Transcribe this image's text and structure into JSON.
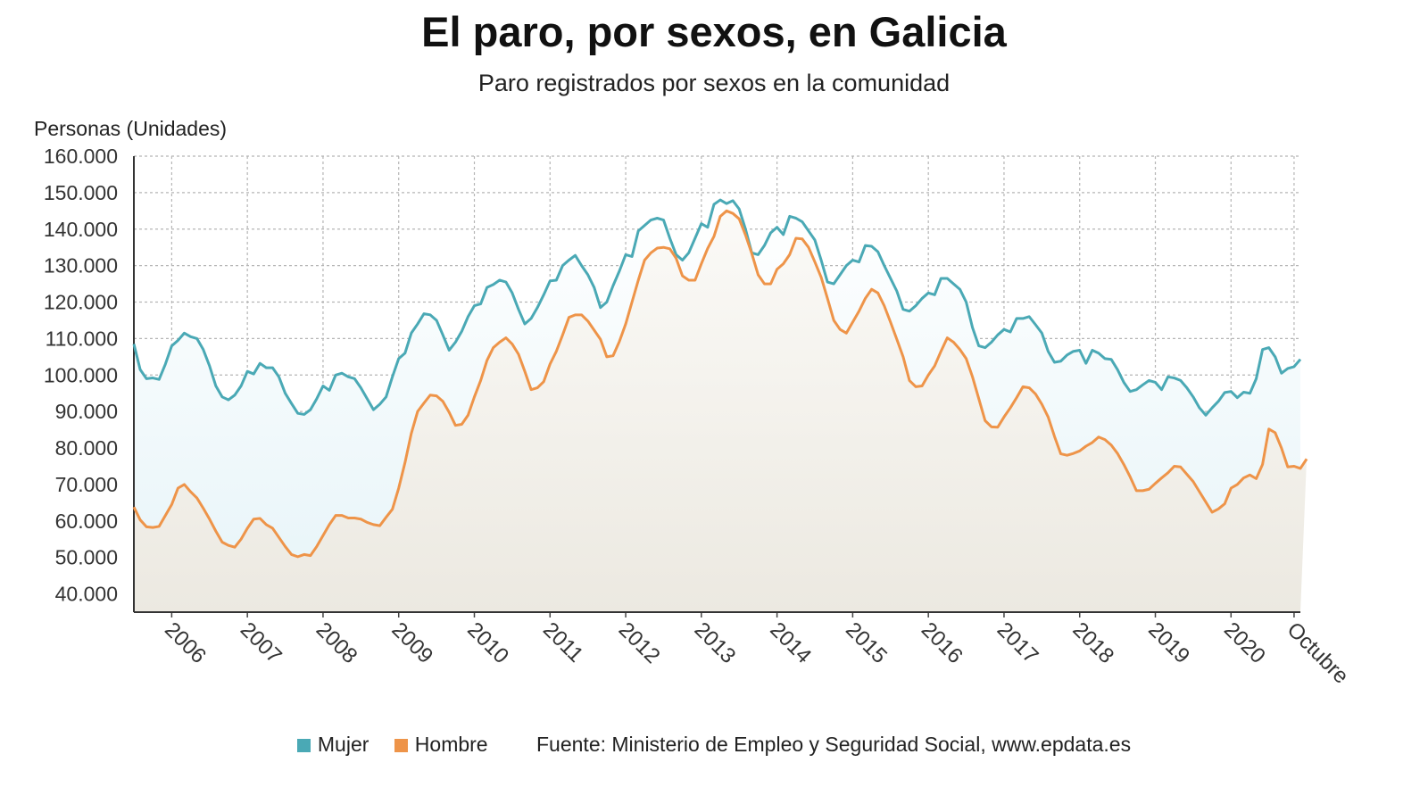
{
  "header": {
    "title": "El paro, por sexos, en Galicia",
    "subtitle": "Paro registrados por sexos en la comunidad"
  },
  "legend": {
    "source": "Fuente: Ministerio de Empleo y Seguridad Social, www.epdata.es"
  },
  "chart_data": {
    "type": "area",
    "title": "El paro, por sexos, en Galicia",
    "subtitle": "Paro registrados por sexos en la comunidad",
    "ylabel": "Personas (Unidades)",
    "xlabel": "",
    "ylim": [
      35000,
      160000
    ],
    "y_ticks": [
      160000,
      150000,
      140000,
      130000,
      120000,
      110000,
      100000,
      90000,
      80000,
      70000,
      60000,
      50000,
      40000
    ],
    "y_tick_labels": [
      "160.000",
      "150.000",
      "140.000",
      "130.000",
      "120.000",
      "110.000",
      "100.000",
      "90.000",
      "80.000",
      "70.000",
      "60.000",
      "50.000",
      "40.000"
    ],
    "x_range": [
      "2005-07",
      "2020-10"
    ],
    "x_ticks": [
      {
        "label": "2006",
        "month_index": 6
      },
      {
        "label": "2007",
        "month_index": 18
      },
      {
        "label": "2008",
        "month_index": 30
      },
      {
        "label": "2009",
        "month_index": 42
      },
      {
        "label": "2010",
        "month_index": 54
      },
      {
        "label": "2011",
        "month_index": 66
      },
      {
        "label": "2012",
        "month_index": 78
      },
      {
        "label": "2013",
        "month_index": 90
      },
      {
        "label": "2014",
        "month_index": 102
      },
      {
        "label": "2015",
        "month_index": 114
      },
      {
        "label": "2016",
        "month_index": 126
      },
      {
        "label": "2017",
        "month_index": 138
      },
      {
        "label": "2018",
        "month_index": 150
      },
      {
        "label": "2019",
        "month_index": 162
      },
      {
        "label": "2020",
        "month_index": 174
      },
      {
        "label": "Octubre",
        "month_index": 184
      }
    ],
    "grid": true,
    "legend_position": "bottom",
    "series": [
      {
        "name": "Mujer",
        "color": "#4aa9b5",
        "values": [
          108500,
          101500,
          99000,
          99200,
          98800,
          103000,
          108000,
          109500,
          111500,
          110500,
          110000,
          107000,
          102500,
          97000,
          94000,
          93200,
          94500,
          97000,
          101000,
          100300,
          103200,
          102000,
          102000,
          99500,
          95000,
          92200,
          89500,
          89200,
          90500,
          93500,
          97000,
          95800,
          100000,
          100500,
          99500,
          99000,
          96500,
          93500,
          90500,
          92000,
          94000,
          99500,
          104500,
          106000,
          111500,
          114000,
          116800,
          116500,
          115000,
          111000,
          106800,
          109000,
          112000,
          116000,
          119000,
          119500,
          124000,
          124800,
          126000,
          125500,
          122500,
          118000,
          114000,
          115500,
          118500,
          122000,
          125800,
          126000,
          130000,
          131500,
          132800,
          130000,
          127500,
          124000,
          118500,
          120000,
          124500,
          128500,
          133000,
          132500,
          139500,
          141000,
          142500,
          143000,
          142500,
          137500,
          133000,
          131500,
          133500,
          137500,
          141500,
          140500,
          146800,
          148000,
          147000,
          147800,
          145500,
          140000,
          133500,
          133000,
          135500,
          139000,
          140500,
          138500,
          143500,
          143000,
          142000,
          139500,
          137000,
          131500,
          125500,
          125000,
          127500,
          130000,
          131500,
          131000,
          135500,
          135300,
          133800,
          130000,
          126500,
          123000,
          118000,
          117500,
          119000,
          121000,
          122500,
          122000,
          126500,
          126500,
          125000,
          123500,
          120000,
          113000,
          108000,
          107500,
          109000,
          111000,
          112500,
          111800,
          115500,
          115500,
          116000,
          113800,
          111500,
          106500,
          103500,
          103800,
          105500,
          106500,
          106800,
          103200,
          106800,
          106000,
          104500,
          104300,
          101500,
          98000,
          95500,
          96000,
          97300,
          98500,
          98000,
          96000,
          99500,
          99200,
          98500,
          96500,
          94000,
          91000,
          89000,
          91000,
          92800,
          95200,
          95500,
          93800,
          95300,
          95000,
          99000,
          107000,
          107500,
          105000,
          100500,
          101800,
          102300,
          104300
        ]
      },
      {
        "name": "Hombre",
        "color": "#ee9449",
        "values": [
          63800,
          60300,
          58400,
          58200,
          58500,
          61500,
          64500,
          69000,
          70000,
          68000,
          66300,
          63500,
          60500,
          57200,
          54200,
          53300,
          52800,
          55000,
          58000,
          60500,
          60700,
          59000,
          58000,
          55500,
          53000,
          50800,
          50200,
          50800,
          50500,
          53000,
          56000,
          59000,
          61500,
          61500,
          60800,
          60800,
          60500,
          59600,
          59000,
          58700,
          61000,
          63200,
          69000,
          76000,
          84000,
          90000,
          92300,
          94500,
          94300,
          92800,
          89800,
          86200,
          86500,
          89000,
          94000,
          98500,
          104000,
          107500,
          109000,
          110200,
          108500,
          105700,
          101000,
          96000,
          96500,
          98200,
          103000,
          106500,
          111000,
          115800,
          116500,
          116500,
          114800,
          112300,
          109800,
          105000,
          105300,
          109200,
          114000,
          120000,
          126000,
          131500,
          133500,
          134800,
          135000,
          134600,
          132000,
          127200,
          126000,
          126000,
          130500,
          134700,
          138000,
          143500,
          145000,
          144300,
          142800,
          138400,
          133300,
          127500,
          125000,
          125000,
          129000,
          130500,
          133000,
          137500,
          137300,
          135000,
          131000,
          126800,
          121000,
          115000,
          112500,
          111500,
          114500,
          117500,
          121000,
          123500,
          122500,
          119000,
          114500,
          109800,
          105000,
          98500,
          96800,
          97000,
          100000,
          102500,
          106500,
          110200,
          109000,
          107000,
          104500,
          99500,
          93500,
          87500,
          85800,
          85700,
          88500,
          91000,
          93800,
          96800,
          96500,
          94800,
          92000,
          88500,
          83200,
          78400,
          78000,
          78500,
          79200,
          80500,
          81500,
          83000,
          82300,
          80800,
          78500,
          75500,
          72100,
          68300,
          68300,
          68700,
          70300,
          71800,
          73200,
          75000,
          74800,
          72800,
          70800,
          68000,
          65200,
          62400,
          63300,
          64700,
          69000,
          70000,
          71800,
          72600,
          71600,
          75500,
          85200,
          84200,
          80000,
          74800,
          75000,
          74400,
          77000
        ]
      }
    ]
  }
}
